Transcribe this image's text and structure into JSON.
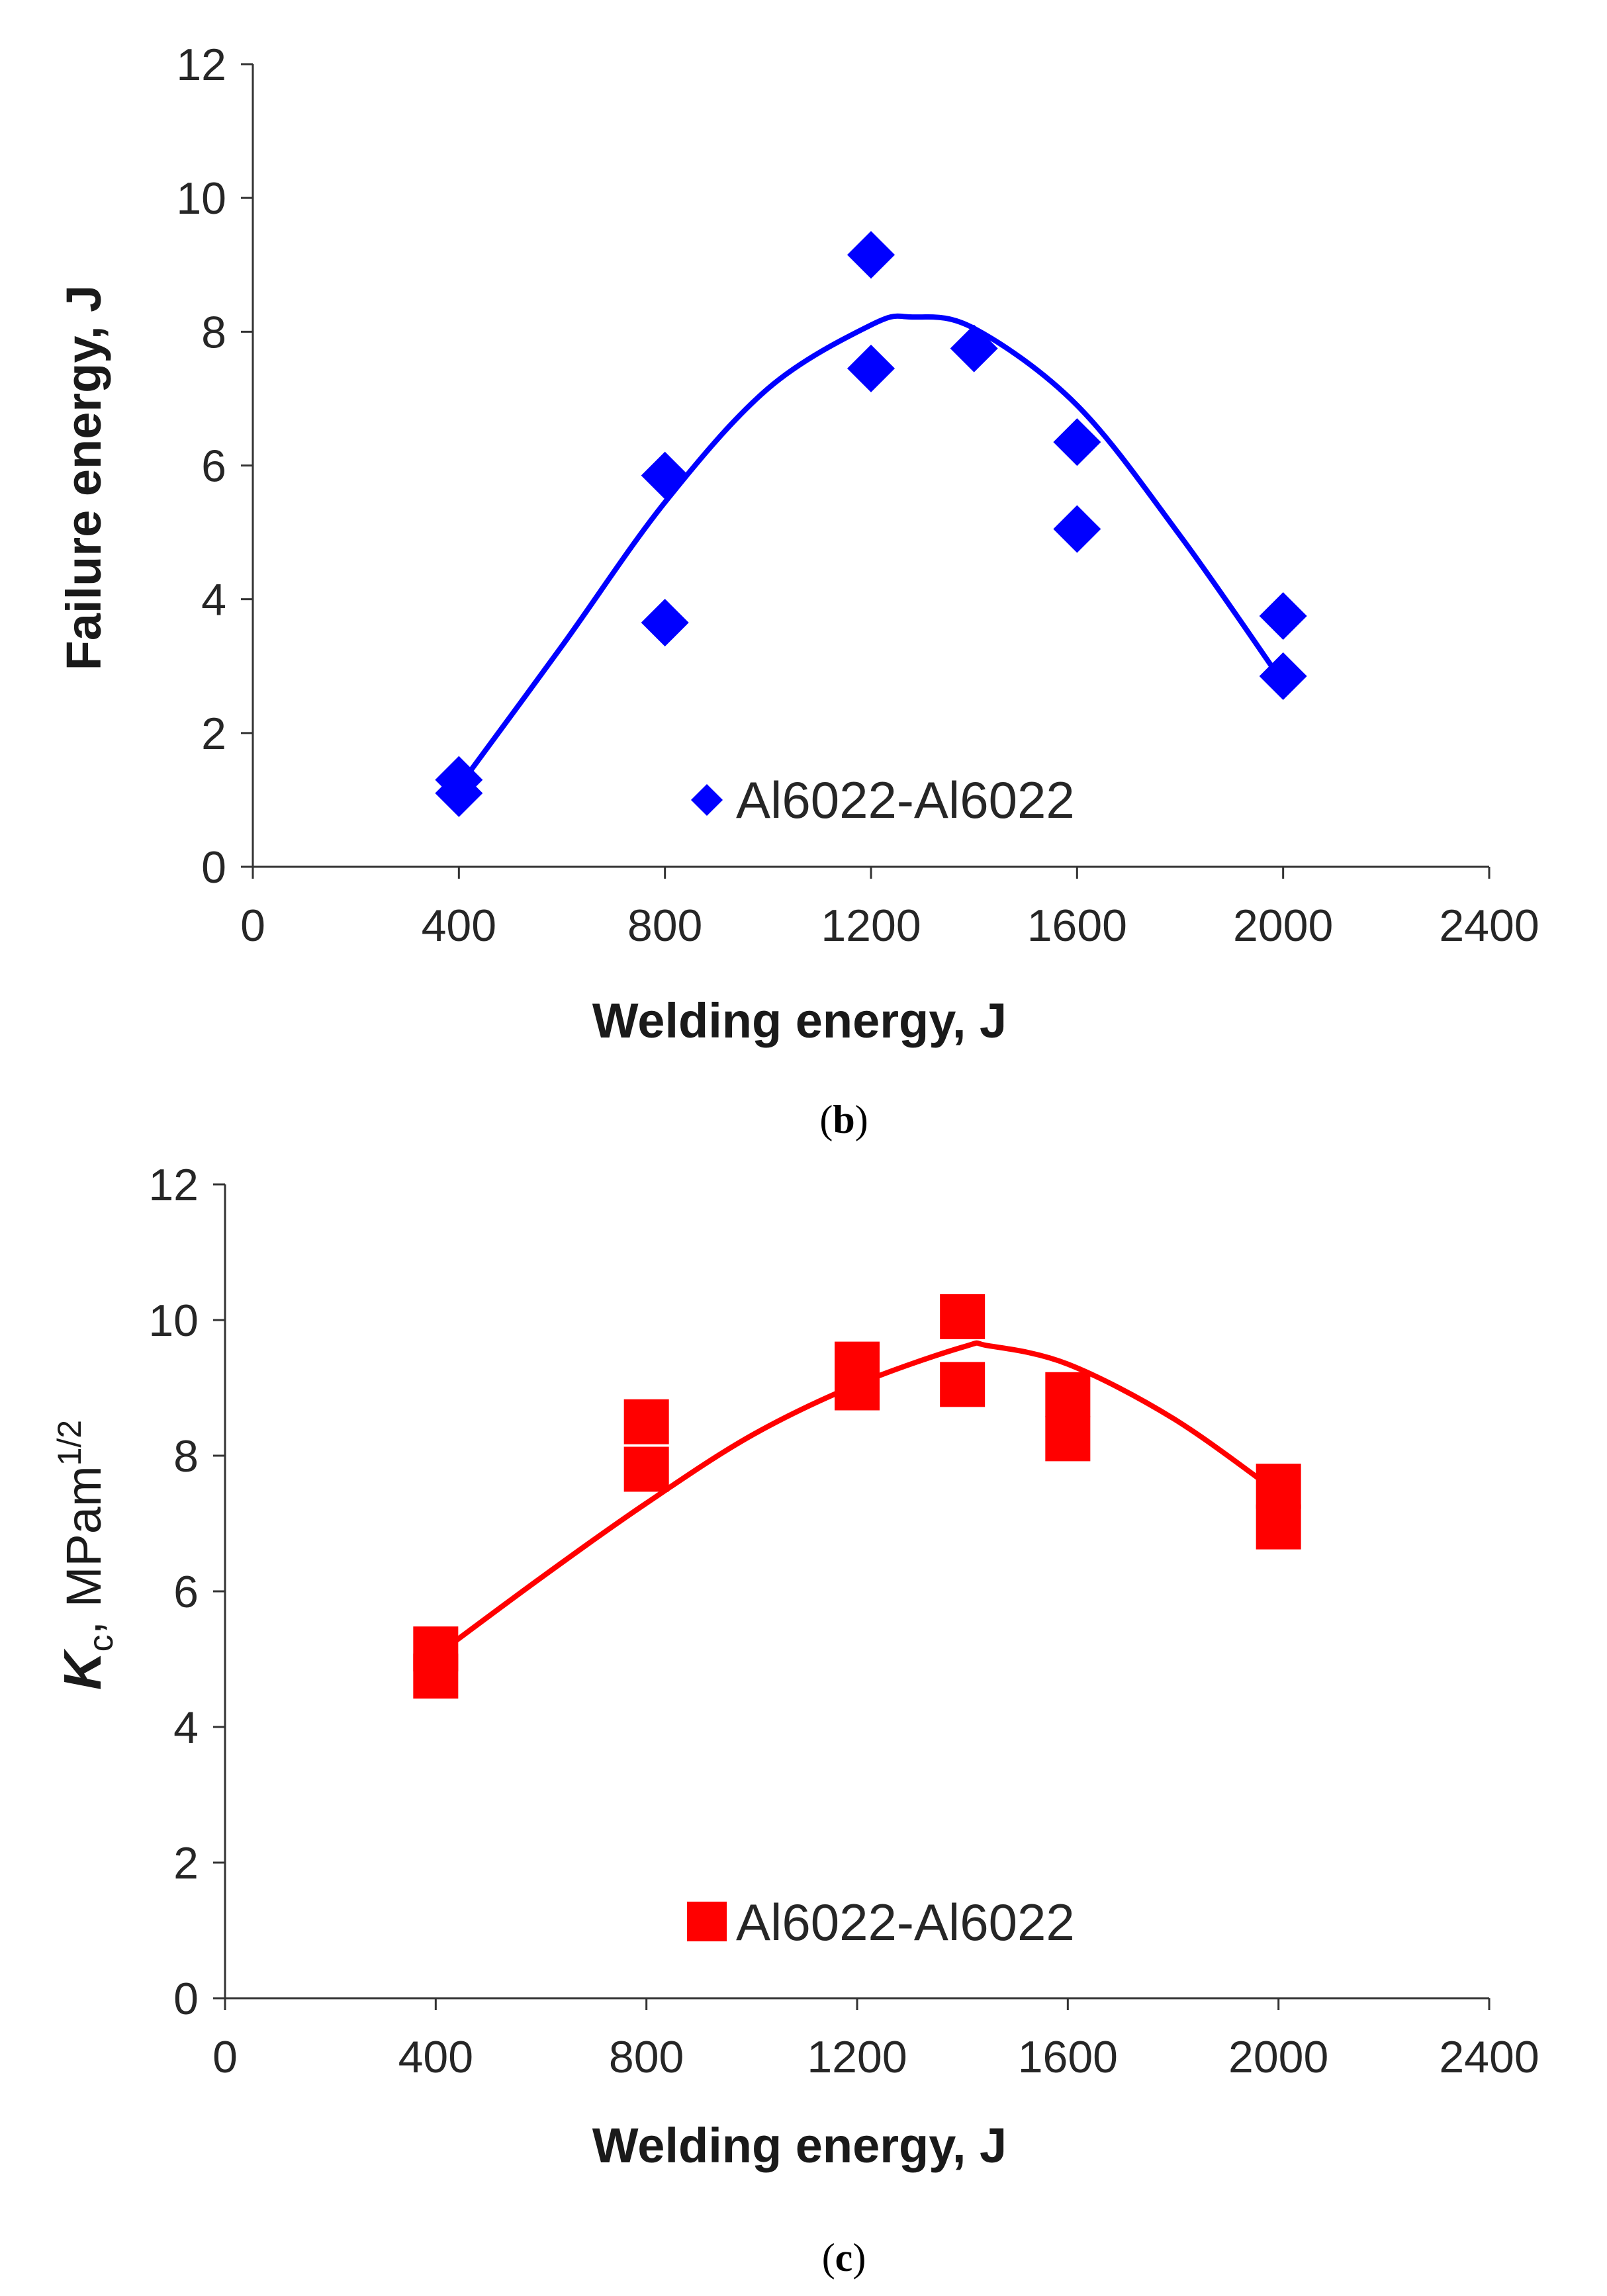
{
  "chart_data": [
    {
      "type": "scatter",
      "panel": "b",
      "xlabel": "Welding energy, J",
      "ylabel": "Failure energy, J",
      "xlim": [
        0,
        2400
      ],
      "ylim": [
        0,
        12
      ],
      "xticks": [
        0,
        400,
        800,
        1200,
        1600,
        2000,
        2400
      ],
      "yticks": [
        0,
        2,
        4,
        6,
        8,
        10,
        12
      ],
      "grid": false,
      "legend_position": "bottom-center",
      "color": "#0000ff",
      "marker": "diamond",
      "series": [
        {
          "name": "Al6022-Al6022",
          "points": [
            [
              400,
              1.3
            ],
            [
              400,
              1.1
            ],
            [
              800,
              5.85
            ],
            [
              800,
              3.65
            ],
            [
              1200,
              9.15
            ],
            [
              1200,
              7.45
            ],
            [
              1400,
              7.75
            ],
            [
              1600,
              6.35
            ],
            [
              1600,
              5.05
            ],
            [
              2000,
              3.75
            ],
            [
              2000,
              2.85
            ]
          ]
        }
      ],
      "fit": {
        "type": "gaussian",
        "color": "#0000ff",
        "x": [
          400,
          600,
          800,
          1000,
          1200,
          1280,
          1400,
          1600,
          1800,
          2000
        ],
        "y": [
          1.2,
          3.3,
          5.45,
          7.15,
          8.1,
          8.22,
          8.05,
          6.9,
          4.95,
          2.75
        ]
      },
      "caption": {
        "open": "(",
        "label": "b",
        "close": ")"
      }
    },
    {
      "type": "scatter",
      "panel": "c",
      "xlabel": "Welding energy, J",
      "ylabel": {
        "symbol": "K",
        "subscript": "c",
        "unit": ", MPam",
        "superscript": "1/2"
      },
      "xlim": [
        0,
        2400
      ],
      "ylim": [
        0,
        12
      ],
      "xticks": [
        0,
        400,
        800,
        1200,
        1600,
        2000,
        2400
      ],
      "yticks": [
        0,
        2,
        4,
        6,
        8,
        10,
        12
      ],
      "grid": false,
      "legend_position": "bottom-center",
      "color": "#ff0000",
      "marker": "square",
      "series": [
        {
          "name": "Al6022-Al6022",
          "points": [
            [
              400,
              5.15
            ],
            [
              400,
              4.75
            ],
            [
              800,
              8.5
            ],
            [
              800,
              7.8
            ],
            [
              1200,
              9.35
            ],
            [
              1200,
              9.0
            ],
            [
              1400,
              10.05
            ],
            [
              1400,
              9.05
            ],
            [
              1600,
              8.9
            ],
            [
              1600,
              8.25
            ],
            [
              2000,
              7.55
            ],
            [
              2000,
              6.95
            ]
          ]
        }
      ],
      "fit": {
        "type": "polynomial",
        "color": "#ff0000",
        "x": [
          400,
          600,
          800,
          1000,
          1200,
          1400,
          1450,
          1600,
          1800,
          2000
        ],
        "y": [
          5.05,
          6.2,
          7.3,
          8.3,
          9.05,
          9.6,
          9.62,
          9.35,
          8.55,
          7.45
        ]
      },
      "caption": {
        "open": "(",
        "label": "c",
        "close": ")"
      }
    }
  ]
}
